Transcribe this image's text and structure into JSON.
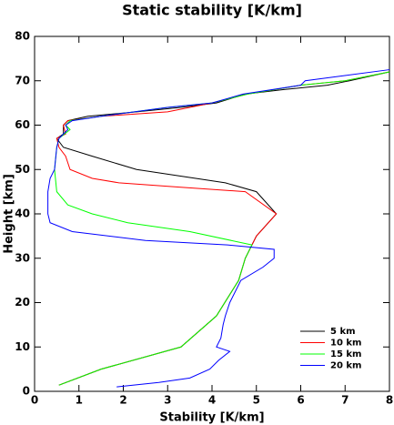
{
  "chart_data": {
    "type": "line",
    "title": "Static stability [K/km]",
    "xlabel": "Stability [K/km]",
    "ylabel": "Height [km]",
    "xlim": [
      0,
      8
    ],
    "ylim": [
      0,
      80
    ],
    "xticks": [
      0,
      1,
      2,
      3,
      4,
      5,
      6,
      7,
      8
    ],
    "yticks": [
      0,
      10,
      20,
      30,
      40,
      50,
      60,
      70,
      80
    ],
    "legend": "lower right",
    "series": [
      {
        "name": "5 km",
        "color": "#000000",
        "x": [
          0.55,
          1.5,
          3.3,
          4.1,
          4.6,
          4.75,
          5.0,
          5.45,
          5.0,
          4.3,
          2.3,
          1.3,
          0.65,
          0.5,
          0.65,
          0.65,
          0.75,
          1.2,
          2.3,
          3.3,
          4.1,
          4.75,
          5.6,
          6.6,
          7.1,
          8.0
        ],
        "values": [
          1.4,
          5,
          10,
          17,
          25,
          30,
          35,
          40,
          45,
          47,
          50,
          53,
          55,
          57,
          58,
          60,
          61,
          62,
          63,
          64,
          65,
          67,
          68,
          69,
          70,
          72
        ]
      },
      {
        "name": "10 km",
        "color": "#ff0000",
        "x": [
          0.55,
          1.5,
          3.3,
          4.1,
          4.6,
          4.75,
          5.0,
          5.45,
          4.75,
          3.3,
          1.9,
          1.3,
          0.8,
          0.7,
          0.55,
          0.5,
          0.7,
          0.65,
          0.75,
          1.5,
          3.0,
          4.0,
          4.8,
          6.0,
          7.0,
          8.0
        ],
        "values": [
          1.4,
          5,
          10,
          17,
          25,
          30,
          35,
          40,
          45,
          46,
          47,
          48,
          50,
          53,
          55,
          57,
          58,
          60,
          61,
          62,
          63,
          65,
          67,
          69,
          70,
          72
        ]
      },
      {
        "name": "15 km",
        "color": "#00ff00",
        "x": [
          0.55,
          1.5,
          3.3,
          4.1,
          4.6,
          4.75,
          4.9,
          3.5,
          2.1,
          1.3,
          0.75,
          0.5,
          0.45,
          0.5,
          0.55,
          0.8,
          0.7,
          0.8,
          1.5,
          3.0,
          4.0,
          4.8,
          6.0,
          7.0,
          8.0
        ],
        "values": [
          1.4,
          5,
          10,
          17,
          25,
          30,
          33,
          36,
          38,
          40,
          42,
          45,
          50,
          55,
          57,
          59,
          60,
          61,
          62,
          64,
          65,
          67,
          69,
          70,
          72
        ]
      },
      {
        "name": "20 km",
        "color": "#0000ff",
        "x": [
          1.85,
          2.8,
          3.5,
          3.95,
          4.15,
          4.4,
          4.1,
          4.2,
          4.25,
          4.3,
          4.4,
          4.65,
          5.15,
          5.4,
          5.4,
          4.35,
          2.5,
          0.85,
          0.35,
          0.3,
          0.3,
          0.35,
          0.45,
          0.5,
          0.55,
          0.75,
          0.7,
          0.85,
          1.5,
          3.0,
          4.0,
          4.7,
          6.0,
          6.1,
          8.0
        ],
        "values": [
          1,
          2,
          3,
          5,
          7,
          9,
          10,
          12,
          15,
          17,
          20,
          25,
          28,
          30,
          32,
          33,
          34,
          36,
          38,
          40,
          45,
          48,
          50,
          55,
          57,
          59,
          60,
          61,
          62,
          64,
          65,
          67,
          69,
          70,
          72.5
        ]
      }
    ]
  }
}
